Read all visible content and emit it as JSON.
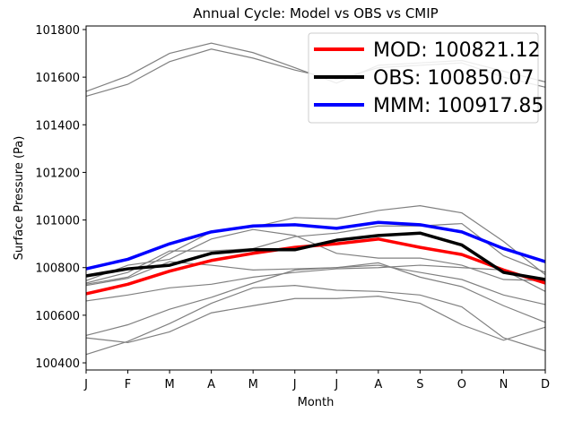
{
  "chart_data": {
    "type": "line",
    "title": "Annual Cycle: Model vs OBS vs CMIP",
    "xlabel": "Month",
    "ylabel": "Surface Pressure (Pa)",
    "categories": [
      "J",
      "F",
      "M",
      "A",
      "M",
      "J",
      "J",
      "A",
      "S",
      "O",
      "N",
      "D"
    ],
    "ylim": [
      100370,
      101815
    ],
    "yticks": [
      100400,
      100600,
      100800,
      101000,
      101200,
      101400,
      101600,
      101800
    ],
    "grid": false,
    "legend_position": "top-right",
    "background_series": [
      {
        "color": "#808080",
        "values": [
          101520,
          101570,
          101665,
          101718,
          101680,
          101630,
          101590,
          101640,
          101650,
          101660,
          101600,
          101558
        ]
      },
      {
        "color": "#808080",
        "values": [
          101540,
          101605,
          101700,
          101743,
          101703,
          101640,
          101575,
          101650,
          101660,
          101670,
          101625,
          101580
        ]
      },
      {
        "color": "#808080",
        "values": [
          100735,
          100780,
          100870,
          100870,
          100880,
          100930,
          100945,
          100975,
          100975,
          100985,
          100850,
          100780
        ]
      },
      {
        "color": "#808080",
        "values": [
          100730,
          100760,
          100860,
          100950,
          100970,
          101010,
          101005,
          101040,
          101060,
          101030,
          100910,
          100770
        ]
      },
      {
        "color": "#808080",
        "values": [
          100745,
          100810,
          100835,
          100920,
          100960,
          100935,
          100860,
          100840,
          100840,
          100810,
          100750,
          100745
        ]
      },
      {
        "color": "#808080",
        "values": [
          100725,
          100755,
          100825,
          100810,
          100790,
          100795,
          100800,
          100810,
          100780,
          100750,
          100685,
          100645
        ]
      },
      {
        "color": "#808080",
        "values": [
          100660,
          100685,
          100715,
          100730,
          100760,
          100780,
          100795,
          100800,
          100810,
          100800,
          100790,
          100700
        ]
      },
      {
        "color": "#808080",
        "values": [
          100515,
          100560,
          100625,
          100675,
          100735,
          100790,
          100800,
          100820,
          100760,
          100720,
          100640,
          100570
        ]
      },
      {
        "color": "#808080",
        "values": [
          100505,
          100485,
          100530,
          100610,
          100640,
          100670,
          100670,
          100680,
          100650,
          100560,
          100495,
          100550
        ]
      },
      {
        "color": "#808080",
        "values": [
          100435,
          100490,
          100565,
          100650,
          100715,
          100725,
          100705,
          100700,
          100685,
          100635,
          100505,
          100450
        ]
      }
    ],
    "series": [
      {
        "name": "MOD: 100821.12",
        "color": "#ff0000",
        "values": [
          100690,
          100730,
          100785,
          100830,
          100860,
          100885,
          100900,
          100920,
          100885,
          100855,
          100790,
          100735
        ]
      },
      {
        "name": "OBS: 100850.07",
        "color": "#000000",
        "values": [
          100765,
          100795,
          100810,
          100860,
          100875,
          100875,
          100915,
          100935,
          100945,
          100895,
          100780,
          100750
        ]
      },
      {
        "name": "MMM: 100917.85",
        "color": "#0000ff",
        "values": [
          100795,
          100835,
          100900,
          100950,
          100975,
          100980,
          100965,
          100990,
          100980,
          100950,
          100880,
          100825
        ]
      }
    ]
  }
}
